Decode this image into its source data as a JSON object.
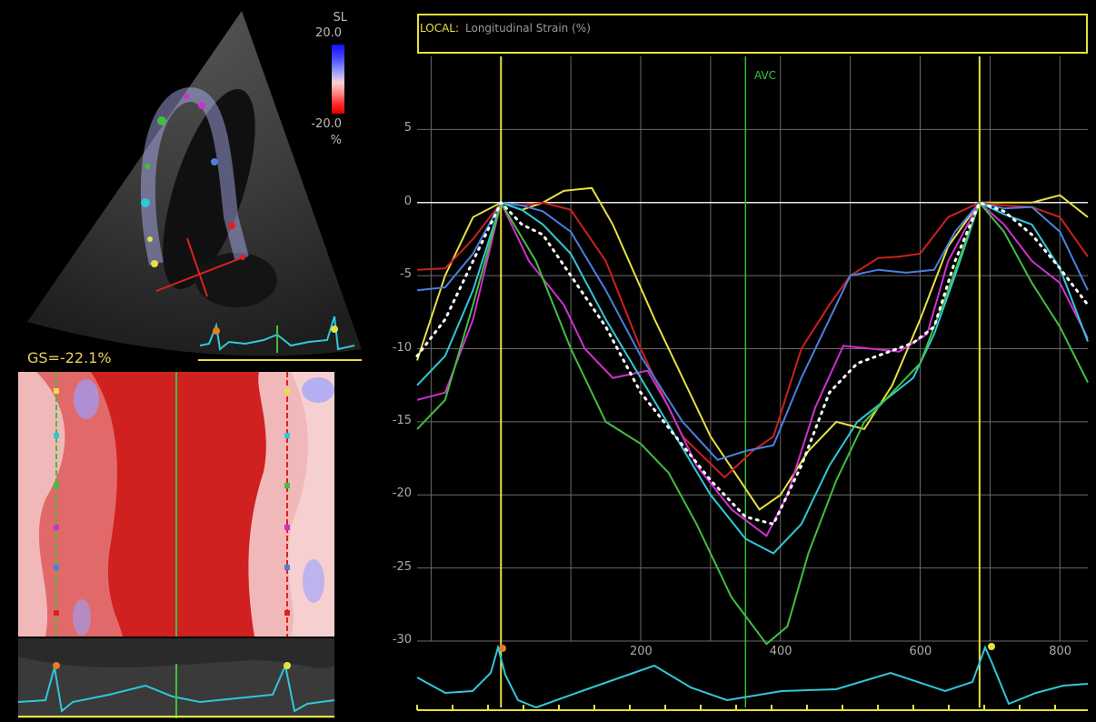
{
  "colorbar": {
    "label": "SL",
    "max": "20.0",
    "min": "-20.0",
    "unit": "%",
    "colors": [
      "#1010ff",
      "#9aa0ff",
      "#ffd0d0",
      "#ff3030",
      "#e00000"
    ]
  },
  "global_strain": "GS=-22.1%",
  "chart_data": {
    "type": "line",
    "title_prefix": "LOCAL:",
    "title": "Longitudinal Strain (%)",
    "xlabel": "",
    "ylabel": "",
    "xlim": [
      -120,
      840
    ],
    "ylim": [
      -30,
      10
    ],
    "x_ticks": [
      200,
      400,
      600,
      800
    ],
    "y_ticks": [
      5,
      0,
      -5,
      -10,
      -15,
      -20,
      -25,
      -30
    ],
    "markers": [
      {
        "label": "AVC",
        "x": 350,
        "color": "#30c030"
      }
    ],
    "reference_lines": [
      {
        "x": 0,
        "color": "#e8e040"
      },
      {
        "x": 685,
        "color": "#e8e040"
      }
    ],
    "series": [
      {
        "color": "#e8e040",
        "x": [
          -120,
          -80,
          -40,
          0,
          30,
          60,
          90,
          130,
          160,
          220,
          300,
          370,
          400,
          440,
          480,
          520,
          560,
          600,
          640,
          685,
          720,
          760,
          800,
          840
        ],
        "y": [
          -10.8,
          -5,
          -1,
          0,
          -0.5,
          0,
          0.8,
          1,
          -1.5,
          -8,
          -16,
          -21,
          -20,
          -17,
          -15,
          -15.5,
          -12.5,
          -8,
          -3,
          0,
          0,
          0,
          0.5,
          -1
        ]
      },
      {
        "color": "#cc2020",
        "x": [
          -120,
          -80,
          -40,
          0,
          30,
          60,
          100,
          150,
          200,
          260,
          320,
          360,
          390,
          430,
          470,
          500,
          540,
          570,
          600,
          640,
          685,
          720,
          760,
          800,
          840
        ],
        "y": [
          -4.6,
          -4.5,
          -2.5,
          0,
          -0.2,
          0,
          -0.5,
          -4,
          -10,
          -16,
          -18.8,
          -17,
          -16,
          -10,
          -7,
          -5,
          -3.8,
          -3.7,
          -3.5,
          -1,
          0,
          -0.2,
          -0.3,
          -1,
          -3.7
        ]
      },
      {
        "color": "#4a80e0",
        "x": [
          -120,
          -80,
          -40,
          0,
          30,
          60,
          100,
          150,
          200,
          260,
          310,
          350,
          390,
          430,
          470,
          500,
          540,
          580,
          620,
          650,
          685,
          720,
          760,
          800,
          840
        ],
        "y": [
          -6,
          -5.8,
          -3.5,
          0,
          -0.2,
          -0.6,
          -2,
          -6,
          -10.5,
          -15,
          -17.6,
          -17,
          -16.6,
          -12,
          -8,
          -5,
          -4.6,
          -4.8,
          -4.6,
          -2,
          0,
          -0.4,
          -0.3,
          -2,
          -6
        ]
      },
      {
        "color": "#d030d0",
        "x": [
          -120,
          -80,
          -40,
          0,
          40,
          90,
          120,
          160,
          210,
          240,
          280,
          330,
          380,
          410,
          450,
          490,
          530,
          570,
          610,
          640,
          685,
          720,
          760,
          800,
          840
        ],
        "y": [
          -13.5,
          -13,
          -8,
          0,
          -4,
          -7,
          -10,
          -12,
          -11.5,
          -14,
          -18,
          -21,
          -22.8,
          -20,
          -14,
          -9.8,
          -10,
          -10.2,
          -9,
          -4,
          0,
          -1.5,
          -4,
          -5.5,
          -9.3
        ]
      },
      {
        "color": "#30c8d8",
        "x": [
          -120,
          -80,
          -40,
          0,
          30,
          60,
          100,
          150,
          200,
          250,
          300,
          350,
          390,
          430,
          470,
          510,
          550,
          590,
          620,
          650,
          685,
          720,
          760,
          800,
          840
        ],
        "y": [
          -12.5,
          -10.5,
          -6,
          0,
          -0.5,
          -1.5,
          -3.5,
          -8,
          -12,
          -16,
          -20,
          -23,
          -24,
          -22,
          -18,
          -15,
          -13.5,
          -12,
          -9,
          -5,
          0,
          -0.8,
          -1.5,
          -4.5,
          -9.5
        ]
      },
      {
        "color": "#40c040",
        "x": [
          -120,
          -80,
          -40,
          0,
          50,
          100,
          150,
          200,
          240,
          280,
          330,
          380,
          410,
          440,
          480,
          520,
          560,
          600,
          640,
          685,
          720,
          760,
          800,
          840
        ],
        "y": [
          -15.5,
          -13.5,
          -7,
          0,
          -4,
          -10,
          -15,
          -16.5,
          -18.5,
          -22,
          -27,
          -30.2,
          -29,
          -24,
          -19,
          -15,
          -13,
          -11,
          -6,
          0,
          -2,
          -5.5,
          -8.5,
          -12.3
        ]
      },
      {
        "color": "#ffffff",
        "dashed": true,
        "x": [
          -120,
          -80,
          -40,
          0,
          30,
          60,
          100,
          150,
          200,
          250,
          300,
          350,
          390,
          430,
          470,
          510,
          550,
          590,
          620,
          650,
          685,
          720,
          760,
          800,
          840
        ],
        "y": [
          -10.5,
          -8,
          -4,
          0,
          -1.5,
          -2.2,
          -5,
          -8.5,
          -13,
          -16,
          -19,
          -21.5,
          -22,
          -18,
          -13,
          -11,
          -10.3,
          -9.6,
          -8.5,
          -4,
          0,
          -0.6,
          -2.2,
          -4.5,
          -7
        ]
      }
    ]
  }
}
